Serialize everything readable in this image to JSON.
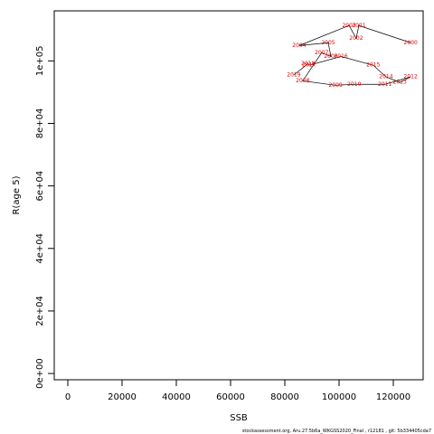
{
  "chart_data": {
    "type": "scatter",
    "xlabel": "SSB",
    "ylabel": "R(age 5)",
    "footer": "stockassessment.org, Aru.27.5b6a_WKGSS2020_Final , r12181 , git: 5b334405cda7",
    "point_labels": [
      "2000",
      "2001",
      "2002",
      "2003",
      "2004",
      "2005",
      "2006",
      "2007",
      "2008",
      "2009",
      "2010",
      "2011",
      "2012",
      "2013",
      "2014",
      "2015",
      "2016",
      "2017",
      "2018",
      "2019"
    ],
    "x": [
      126400,
      107300,
      106300,
      103700,
      85300,
      96000,
      97000,
      93600,
      86600,
      98700,
      105600,
      116900,
      126400,
      122400,
      117300,
      112600,
      100700,
      88900,
      88600,
      83300
    ],
    "values": [
      105800,
      111300,
      107200,
      111300,
      104900,
      105800,
      101400,
      102600,
      93600,
      92200,
      92500,
      92500,
      94900,
      93100,
      94900,
      98600,
      101400,
      98600,
      99100,
      95500
    ],
    "color": "#e00000",
    "line_color": "#000000",
    "xlim": [
      -5000,
      131000
    ],
    "ylim": [
      -2000,
      116000
    ],
    "xticks": [
      0,
      20000,
      40000,
      60000,
      80000,
      100000,
      120000
    ],
    "yticks": [
      {
        "value": 0,
        "label": "0e+00"
      },
      {
        "value": 20000,
        "label": "2e+04"
      },
      {
        "value": 40000,
        "label": "4e+04"
      },
      {
        "value": 60000,
        "label": "6e+04"
      },
      {
        "value": 80000,
        "label": "8e+04"
      },
      {
        "value": 100000,
        "label": "1e+05"
      }
    ]
  }
}
